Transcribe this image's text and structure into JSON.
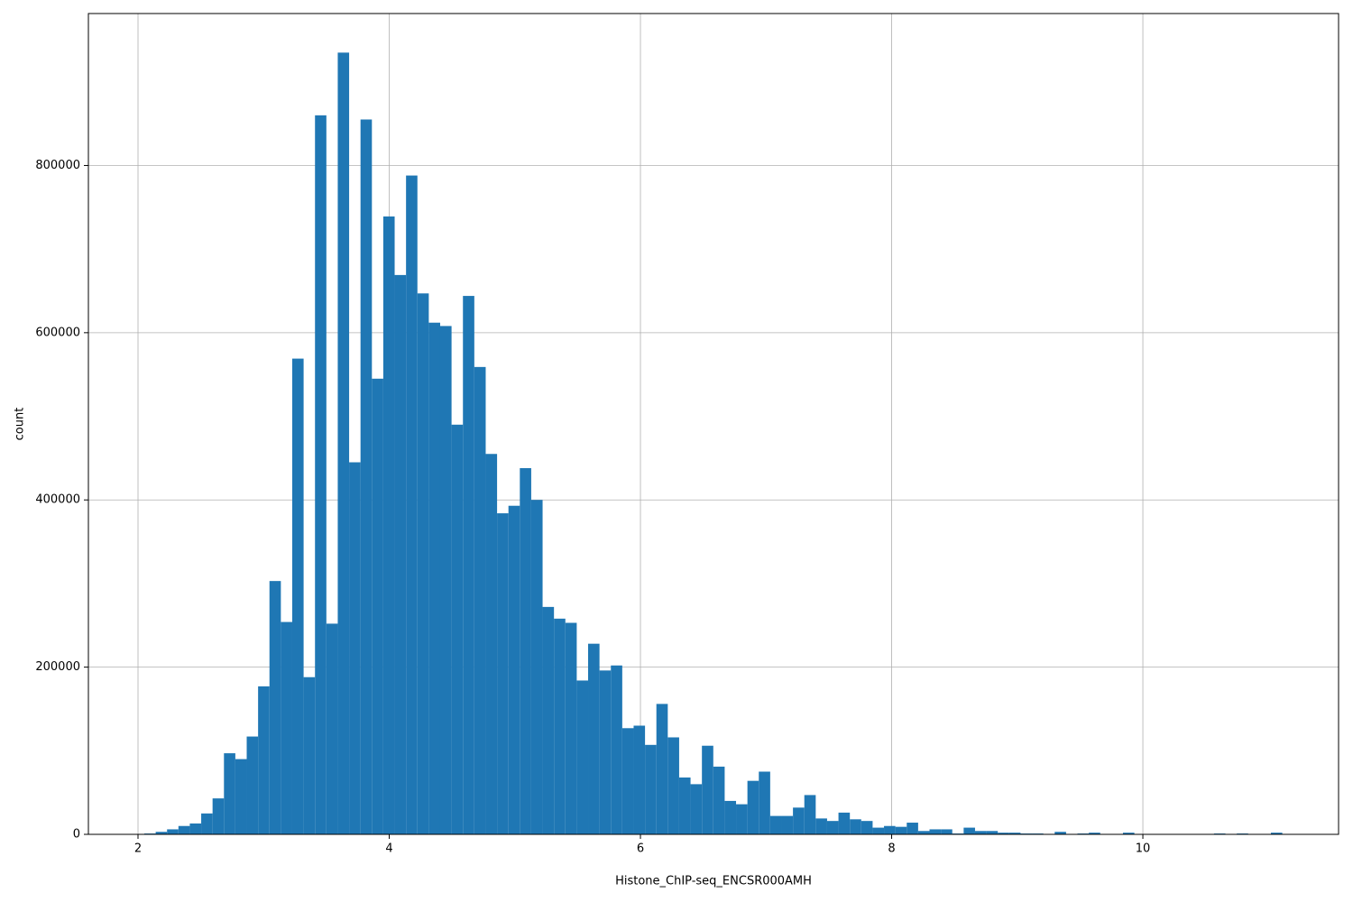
{
  "chart_data": {
    "type": "histogram",
    "x_label": "Histone_ChIP-seq_ENCSR000AMH",
    "y_label": "count",
    "color": "#1f77b4",
    "grid": true,
    "xlim": [
      1.605,
      11.558
    ],
    "ylim": [
      0,
      981750
    ],
    "xticks": [
      2,
      4,
      6,
      8,
      10
    ],
    "yticks": [
      0,
      200000,
      400000,
      600000,
      800000
    ],
    "bins": [
      2.05,
      2.1406,
      2.2312,
      2.3218,
      2.4124,
      2.503,
      2.5936,
      2.6842,
      2.7748,
      2.8654,
      2.956,
      3.0466,
      3.1372,
      3.2278,
      3.3184,
      3.409,
      3.4996,
      3.5902,
      3.6808,
      3.7714,
      3.862,
      3.9526,
      4.0432,
      4.1338,
      4.2244,
      4.315,
      4.4056,
      4.4962,
      4.5868,
      4.6774,
      4.768,
      4.8586,
      4.9492,
      5.0398,
      5.1304,
      5.221,
      5.3116,
      5.4022,
      5.4928,
      5.5834,
      5.674,
      5.7646,
      5.8552,
      5.9458,
      6.0364,
      6.127,
      6.2176,
      6.3082,
      6.3988,
      6.4894,
      6.58,
      6.6706,
      6.7612,
      6.8518,
      6.9424,
      7.033,
      7.1236,
      7.2142,
      7.3048,
      7.3954,
      7.486,
      7.5766,
      7.6672,
      7.7578,
      7.8484,
      7.939,
      8.0296,
      8.1202,
      8.2108,
      8.3014,
      8.392,
      8.4826,
      8.5732,
      8.6638,
      8.7544,
      8.845,
      8.9356,
      9.0262,
      9.1168,
      9.2074,
      9.298,
      9.3886,
      9.4792,
      9.5698,
      9.6604,
      9.751,
      9.8416,
      9.9322,
      10.0228,
      10.1134,
      10.204,
      10.2946,
      10.3852,
      10.4758,
      10.5664,
      10.657,
      10.7476,
      10.8382,
      10.9288,
      11.0194,
      11.11
    ],
    "counts": [
      1000,
      3000,
      6000,
      10000,
      13000,
      25000,
      43000,
      97000,
      90000,
      117000,
      177000,
      303000,
      254000,
      569000,
      188000,
      860000,
      252000,
      935000,
      445000,
      855000,
      545000,
      739000,
      669000,
      788000,
      647000,
      612000,
      608000,
      490000,
      644000,
      559000,
      455000,
      384000,
      393000,
      438000,
      400000,
      272000,
      258000,
      253000,
      184000,
      228000,
      196000,
      202000,
      127000,
      130000,
      107000,
      156000,
      116000,
      68000,
      60000,
      106000,
      81000,
      40000,
      36000,
      64000,
      75000,
      22000,
      22000,
      32000,
      47000,
      19000,
      16000,
      26000,
      18000,
      16000,
      8000,
      10000,
      9000,
      14000,
      4000,
      6000,
      6000,
      1000,
      8000,
      4000,
      4000,
      2000,
      2000,
      1000,
      1000,
      0,
      3000,
      0,
      1000,
      2000,
      0,
      0,
      2000,
      0,
      0,
      0,
      0,
      0,
      0,
      0,
      1000,
      0,
      1000,
      0,
      0,
      2000
    ]
  }
}
